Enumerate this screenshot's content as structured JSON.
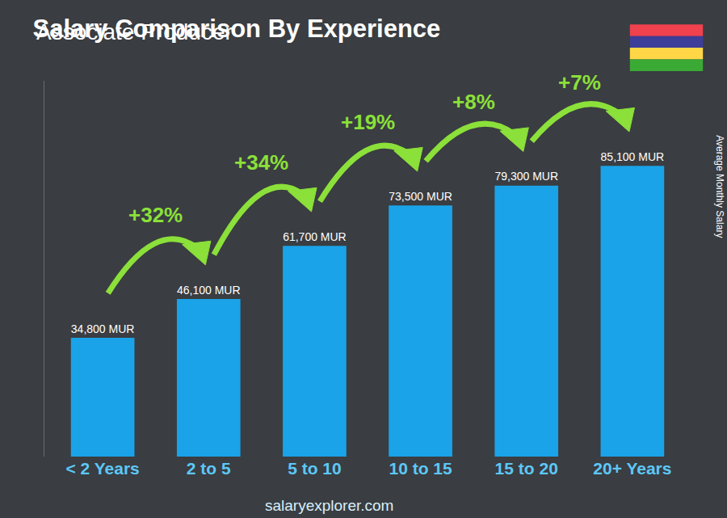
{
  "chart_data": {
    "type": "bar",
    "title": "Salary Comparison By Experience",
    "subtitle": "Associate Producer",
    "categories": [
      "< 2 Years",
      "2 to 5",
      "5 to 10",
      "10 to 15",
      "15 to 20",
      "20+ Years"
    ],
    "values": [
      34800,
      46100,
      61700,
      73500,
      79300,
      85100
    ],
    "value_labels": [
      "34,800 MUR",
      "46,100 MUR",
      "61,700 MUR",
      "73,500 MUR",
      "79,300 MUR",
      "85,100 MUR"
    ],
    "color": "#1aa3e8",
    "ylim": [
      0,
      110000
    ],
    "grid": false,
    "tick_labels": "x",
    "data_labels": true,
    "annotations": [
      "+32%",
      "+34%",
      "+19%",
      "+8%",
      "+7%"
    ],
    "y_label": "Average Monthly Salary",
    "footer": "salaryexplorer.com"
  }
}
